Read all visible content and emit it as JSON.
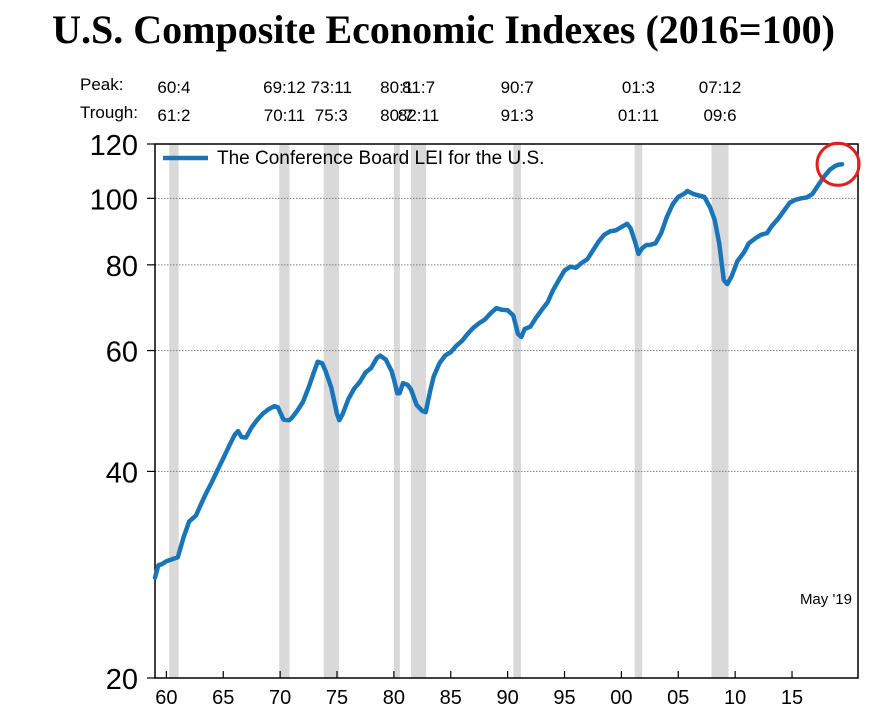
{
  "chart_data": {
    "type": "line",
    "title": "U.S. Composite Economic Indexes (2016=100)",
    "yscale": "log",
    "ylim": [
      20,
      120
    ],
    "yticks": [
      20,
      40,
      60,
      80,
      100,
      120
    ],
    "xlim": [
      1959.0,
      2020.8
    ],
    "xticks": [
      1960,
      1965,
      1970,
      1975,
      1980,
      1985,
      1990,
      1995,
      2000,
      2005,
      2010,
      2015
    ],
    "xtick_labels": [
      "60",
      "65",
      "70",
      "75",
      "80",
      "85",
      "90",
      "95",
      "00",
      "05",
      "10",
      "15"
    ],
    "grid": "horizontal at 40, 60, 80, 100",
    "legend": {
      "position": "top-left",
      "entry": "The Conference Board LEI for the U.S."
    },
    "annotation": "May '19",
    "highlight": "red circle around the latest values",
    "colors": {
      "series": "#1a75b8",
      "recession": "#d9d9d9",
      "highlight": "#e0201e"
    },
    "peak_label": "Peak:",
    "trough_label": "Trough:",
    "recessions": [
      {
        "peak": "60:4",
        "trough": "61:2",
        "start": 1960.25,
        "end": 1961.08
      },
      {
        "peak": "69:12",
        "trough": "70:11",
        "start": 1969.92,
        "end": 1970.83
      },
      {
        "peak": "73:11",
        "trough": "75:3",
        "start": 1973.83,
        "end": 1975.17
      },
      {
        "peak": "80:1",
        "trough": "80:7",
        "start": 1980.0,
        "end": 1980.5
      },
      {
        "peak": "81:7",
        "trough": "82:11",
        "start": 1981.5,
        "end": 1982.83
      },
      {
        "peak": "90:7",
        "trough": "91:3",
        "start": 1990.5,
        "end": 1991.17
      },
      {
        "peak": "01:3",
        "trough": "01:11",
        "start": 2001.17,
        "end": 2001.83
      },
      {
        "peak": "07:12",
        "trough": "09:6",
        "start": 2007.92,
        "end": 2009.42
      }
    ],
    "series": [
      {
        "name": "The Conference Board LEI for the U.S.",
        "points": [
          [
            1959.0,
            28.0
          ],
          [
            1959.3,
            29.2
          ],
          [
            1959.6,
            29.3
          ],
          [
            1960.0,
            29.6
          ],
          [
            1960.5,
            29.8
          ],
          [
            1961.0,
            30.0
          ],
          [
            1961.5,
            32.0
          ],
          [
            1962.0,
            33.8
          ],
          [
            1962.6,
            34.5
          ],
          [
            1963.0,
            35.7
          ],
          [
            1963.5,
            37.2
          ],
          [
            1964.0,
            38.6
          ],
          [
            1964.5,
            40.2
          ],
          [
            1965.0,
            41.8
          ],
          [
            1965.5,
            43.5
          ],
          [
            1966.0,
            45.2
          ],
          [
            1966.3,
            45.8
          ],
          [
            1966.6,
            44.9
          ],
          [
            1967.0,
            44.8
          ],
          [
            1967.5,
            46.4
          ],
          [
            1968.0,
            47.6
          ],
          [
            1968.5,
            48.6
          ],
          [
            1969.0,
            49.3
          ],
          [
            1969.5,
            49.8
          ],
          [
            1969.8,
            49.6
          ],
          [
            1970.3,
            47.6
          ],
          [
            1970.8,
            47.5
          ],
          [
            1971.0,
            47.8
          ],
          [
            1971.5,
            49.0
          ],
          [
            1972.0,
            50.5
          ],
          [
            1972.5,
            53.0
          ],
          [
            1973.0,
            56.0
          ],
          [
            1973.3,
            57.8
          ],
          [
            1973.7,
            57.5
          ],
          [
            1974.0,
            56.0
          ],
          [
            1974.5,
            53.0
          ],
          [
            1975.0,
            48.5
          ],
          [
            1975.2,
            47.5
          ],
          [
            1975.5,
            48.5
          ],
          [
            1976.0,
            51.0
          ],
          [
            1976.5,
            52.8
          ],
          [
            1977.0,
            54.0
          ],
          [
            1977.5,
            55.7
          ],
          [
            1978.0,
            56.6
          ],
          [
            1978.5,
            58.5
          ],
          [
            1978.8,
            59.0
          ],
          [
            1979.3,
            58.2
          ],
          [
            1979.8,
            56.0
          ],
          [
            1980.0,
            54.5
          ],
          [
            1980.3,
            52.0
          ],
          [
            1980.5,
            52.0
          ],
          [
            1980.8,
            53.8
          ],
          [
            1981.2,
            53.5
          ],
          [
            1981.5,
            52.7
          ],
          [
            1982.0,
            50.0
          ],
          [
            1982.5,
            49.0
          ],
          [
            1982.8,
            48.8
          ],
          [
            1983.2,
            52.5
          ],
          [
            1983.5,
            55.0
          ],
          [
            1984.0,
            57.5
          ],
          [
            1984.5,
            59.0
          ],
          [
            1985.0,
            59.7
          ],
          [
            1985.5,
            61.0
          ],
          [
            1986.0,
            62.0
          ],
          [
            1986.5,
            63.5
          ],
          [
            1987.0,
            64.8
          ],
          [
            1987.5,
            65.8
          ],
          [
            1988.0,
            66.6
          ],
          [
            1988.5,
            68.0
          ],
          [
            1989.0,
            69.2
          ],
          [
            1989.5,
            68.8
          ],
          [
            1990.0,
            68.7
          ],
          [
            1990.5,
            67.5
          ],
          [
            1990.9,
            63.5
          ],
          [
            1991.2,
            62.8
          ],
          [
            1991.5,
            64.5
          ],
          [
            1992.0,
            65.0
          ],
          [
            1992.5,
            67.0
          ],
          [
            1993.0,
            68.8
          ],
          [
            1993.5,
            70.5
          ],
          [
            1994.0,
            73.5
          ],
          [
            1994.5,
            76.0
          ],
          [
            1995.0,
            78.5
          ],
          [
            1995.5,
            79.5
          ],
          [
            1996.0,
            79.2
          ],
          [
            1996.5,
            80.5
          ],
          [
            1997.0,
            81.5
          ],
          [
            1997.5,
            84.0
          ],
          [
            1998.0,
            86.5
          ],
          [
            1998.5,
            88.5
          ],
          [
            1999.0,
            89.5
          ],
          [
            1999.5,
            89.8
          ],
          [
            2000.0,
            90.8
          ],
          [
            2000.5,
            91.8
          ],
          [
            2000.8,
            90.5
          ],
          [
            2001.2,
            86.5
          ],
          [
            2001.5,
            83.0
          ],
          [
            2001.8,
            84.5
          ],
          [
            2002.2,
            85.5
          ],
          [
            2002.5,
            85.5
          ],
          [
            2003.0,
            86.0
          ],
          [
            2003.5,
            89.0
          ],
          [
            2004.0,
            94.0
          ],
          [
            2004.5,
            98.0
          ],
          [
            2005.0,
            100.5
          ],
          [
            2005.5,
            101.5
          ],
          [
            2005.8,
            102.5
          ],
          [
            2006.3,
            101.5
          ],
          [
            2006.8,
            101.0
          ],
          [
            2007.3,
            100.5
          ],
          [
            2007.8,
            97.0
          ],
          [
            2008.2,
            93.0
          ],
          [
            2008.6,
            86.0
          ],
          [
            2009.0,
            76.0
          ],
          [
            2009.3,
            75.0
          ],
          [
            2009.7,
            77.0
          ],
          [
            2010.2,
            81.0
          ],
          [
            2010.8,
            83.5
          ],
          [
            2011.2,
            86.0
          ],
          [
            2011.8,
            87.5
          ],
          [
            2012.3,
            88.5
          ],
          [
            2012.8,
            89.0
          ],
          [
            2013.2,
            91.0
          ],
          [
            2013.8,
            93.5
          ],
          [
            2014.3,
            96.0
          ],
          [
            2014.8,
            98.5
          ],
          [
            2015.3,
            99.5
          ],
          [
            2015.8,
            100.0
          ],
          [
            2016.3,
            100.3
          ],
          [
            2016.8,
            101.5
          ],
          [
            2017.3,
            104.5
          ],
          [
            2017.8,
            107.5
          ],
          [
            2018.3,
            110.0
          ],
          [
            2018.8,
            111.5
          ],
          [
            2019.1,
            112.0
          ],
          [
            2019.4,
            112.1
          ]
        ]
      }
    ]
  }
}
